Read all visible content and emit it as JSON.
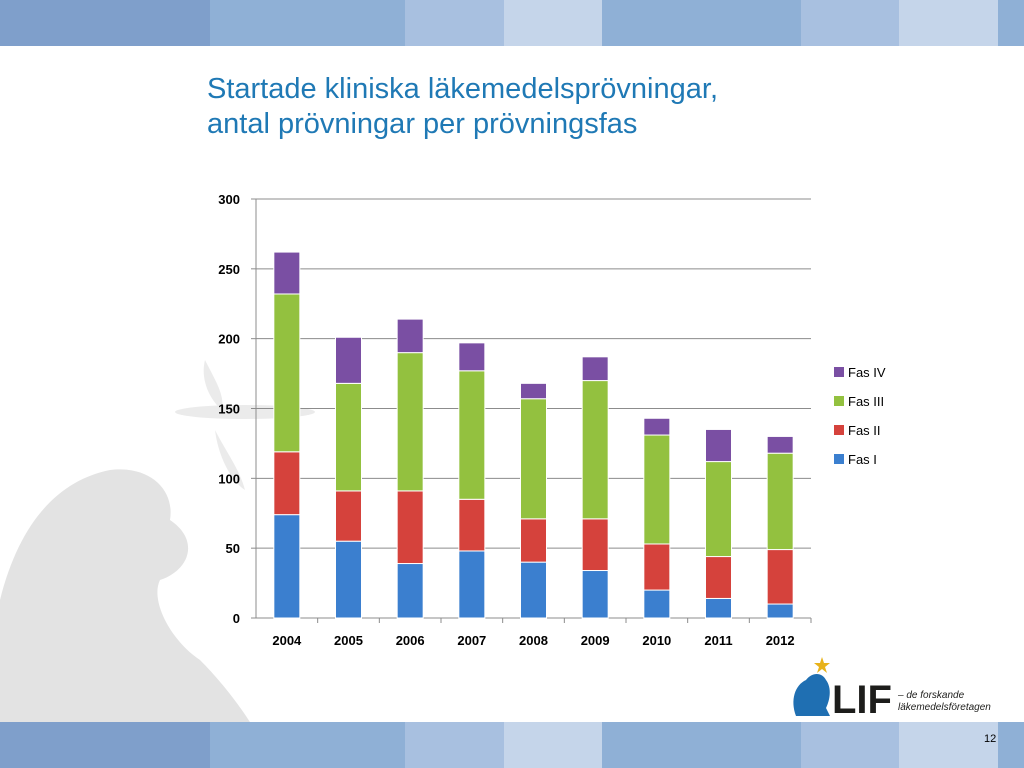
{
  "slide": {
    "title_line1": "Startade kliniska läkemedelsprövningar,",
    "title_line2": "antal prövningar per prövningsfas",
    "page_number": "12",
    "band_colors": [
      "#7f9fcb",
      "#8fb0d6",
      "#a8c0e0",
      "#c5d5ea",
      "#8fb0d6",
      "#a8c0e0",
      "#c5d5ea",
      "#8fb0d6"
    ]
  },
  "logo": {
    "name": "LIF",
    "tagline_line1": "– de forskande",
    "tagline_line2": "läkemedelsföretagen"
  },
  "chart_data": {
    "type": "bar",
    "stacked": true,
    "categories": [
      "2004",
      "2005",
      "2006",
      "2007",
      "2008",
      "2009",
      "2010",
      "2011",
      "2012"
    ],
    "series": [
      {
        "name": "Fas I",
        "color": "#3b7fcf",
        "values": [
          74,
          55,
          39,
          48,
          40,
          34,
          20,
          14,
          10
        ]
      },
      {
        "name": "Fas II",
        "color": "#d5423c",
        "values": [
          45,
          36,
          52,
          37,
          31,
          37,
          33,
          30,
          39
        ]
      },
      {
        "name": "Fas III",
        "color": "#93c13f",
        "values": [
          113,
          77,
          99,
          92,
          86,
          99,
          78,
          68,
          69
        ]
      },
      {
        "name": "Fas IV",
        "color": "#7a4fa3",
        "values": [
          30,
          33,
          24,
          20,
          11,
          17,
          12,
          23,
          12
        ]
      }
    ],
    "ylim": [
      0,
      300
    ],
    "yticks": [
      "0",
      "50",
      "100",
      "150",
      "200",
      "250",
      "300"
    ],
    "grid": true,
    "legend_position": "right",
    "legend_order": [
      "Fas IV",
      "Fas III",
      "Fas II",
      "Fas I"
    ]
  }
}
